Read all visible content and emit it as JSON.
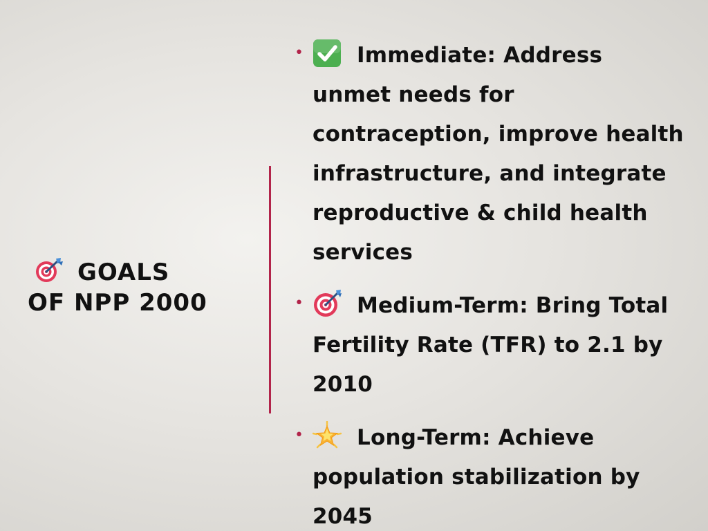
{
  "slide": {
    "title_line1": "GOALS",
    "title_line2": "OF NPP 2000",
    "title_icon": "dart-target-icon",
    "accent_color": "#b2244a",
    "bullets": [
      {
        "icon": "check-mark-button-icon",
        "text": "Immediate: Address unmet needs for contraception, improve health infrastructure, and integrate reproductive & child health services"
      },
      {
        "icon": "dart-target-icon",
        "text": "Medium-Term: Bring Total Fertility Rate (TFR) to 2.1 by 2010"
      },
      {
        "icon": "glowing-star-icon",
        "text": "Long-Term: Achieve population stabilization by 2045"
      }
    ]
  }
}
